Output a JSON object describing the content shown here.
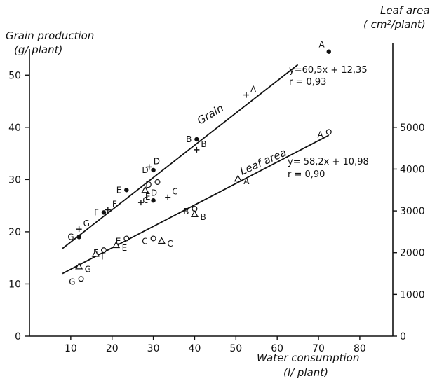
{
  "chart_data": {
    "type": "scatter",
    "title": "",
    "xlabel": [
      "Water consumption",
      "(l/ plant)"
    ],
    "ylabel_left": [
      "Grain production",
      "(g/ plant)"
    ],
    "ylabel_right": [
      "Leaf area",
      "( cm²/plant)"
    ],
    "x_ticks": [
      10,
      20,
      30,
      40,
      50,
      60,
      70,
      80
    ],
    "y_left_ticks": [
      0,
      10,
      20,
      30,
      40,
      50
    ],
    "y_right_ticks": [
      0,
      1000,
      2000,
      3000,
      4000,
      5000
    ],
    "xlim": [
      0,
      88
    ],
    "ylim_left": [
      0,
      55
    ],
    "ylim_right": [
      0,
      6875
    ],
    "grid": false,
    "series_labels": {
      "grain": "Grain",
      "leaf": "Leaf area"
    },
    "equations": [
      {
        "text": "y=60,5x + 12,35",
        "r": "r = 0,93"
      },
      {
        "text": "y= 58,2x + 10,98",
        "r": "r = 0,90"
      }
    ],
    "grain_line": [
      [
        8,
        16.8
      ],
      [
        65,
        52
      ]
    ],
    "leaf_line": [
      [
        8,
        1500
      ],
      [
        72.5,
        4810
      ]
    ],
    "series": [
      {
        "name": "Grain",
        "marker": "dot",
        "points": [
          {
            "x": 12,
            "y": 19,
            "label": "G"
          },
          {
            "x": 18,
            "y": 23.7,
            "label": "F"
          },
          {
            "x": 23.5,
            "y": 28,
            "label": "E"
          },
          {
            "x": 30,
            "y": 26,
            "label": "C"
          },
          {
            "x": 30,
            "y": 31.8,
            "label": "D"
          },
          {
            "x": 40.5,
            "y": 37.7,
            "label": "B"
          },
          {
            "x": 72.5,
            "y": 54.5,
            "label": "A"
          }
        ]
      },
      {
        "name": "",
        "marker": "plus",
        "points": [
          {
            "x": 12,
            "y": 20.5,
            "label": "G"
          },
          {
            "x": 19,
            "y": 24.2,
            "label": "F"
          },
          {
            "x": 27,
            "y": 25.6,
            "label": "E"
          },
          {
            "x": 33.5,
            "y": 26.6,
            "label": "C"
          },
          {
            "x": 29,
            "y": 32.4,
            "label": "D"
          },
          {
            "x": 40.5,
            "y": 35.7,
            "label": "B"
          },
          {
            "x": 52.5,
            "y": 46.2,
            "label": "A"
          }
        ]
      },
      {
        "name": "Leaf area",
        "marker": "open-circle",
        "points": [
          {
            "x": 12.5,
            "y": 1370,
            "label": "G"
          },
          {
            "x": 18,
            "y": 2060,
            "label": "F"
          },
          {
            "x": 23.5,
            "y": 2340,
            "label": "E"
          },
          {
            "x": 30,
            "y": 2340,
            "label": "C"
          },
          {
            "x": 31,
            "y": 3690,
            "label": "D"
          },
          {
            "x": 40,
            "y": 3050,
            "label": "B"
          },
          {
            "x": 72.5,
            "y": 4890,
            "label": "A"
          }
        ]
      },
      {
        "name": "",
        "marker": "triangle",
        "points": [
          {
            "x": 12,
            "y": 1670,
            "label": "G"
          },
          {
            "x": 16,
            "y": 1970,
            "label": "F"
          },
          {
            "x": 21,
            "y": 2180,
            "label": "E"
          },
          {
            "x": 32,
            "y": 2280,
            "label": "C"
          },
          {
            "x": 28,
            "y": 3500,
            "label": "D"
          },
          {
            "x": 40,
            "y": 2920,
            "label": "B"
          },
          {
            "x": 50.5,
            "y": 3770,
            "label": "A"
          }
        ]
      }
    ]
  }
}
